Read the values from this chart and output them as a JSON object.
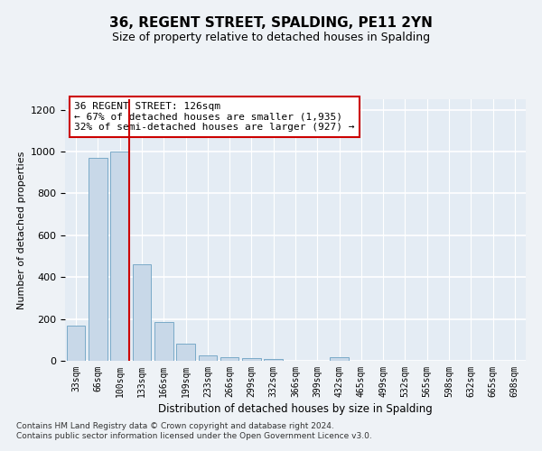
{
  "title": "36, REGENT STREET, SPALDING, PE11 2YN",
  "subtitle": "Size of property relative to detached houses in Spalding",
  "xlabel": "Distribution of detached houses by size in Spalding",
  "ylabel": "Number of detached properties",
  "categories": [
    "33sqm",
    "66sqm",
    "100sqm",
    "133sqm",
    "166sqm",
    "199sqm",
    "233sqm",
    "266sqm",
    "299sqm",
    "332sqm",
    "366sqm",
    "399sqm",
    "432sqm",
    "465sqm",
    "499sqm",
    "532sqm",
    "565sqm",
    "598sqm",
    "632sqm",
    "665sqm",
    "698sqm"
  ],
  "values": [
    170,
    970,
    1000,
    460,
    185,
    80,
    25,
    18,
    12,
    10,
    0,
    0,
    18,
    0,
    0,
    0,
    0,
    0,
    0,
    0,
    0
  ],
  "bar_color": "#c8d8e8",
  "bar_edge_color": "#7aaac8",
  "vline_color": "#cc0000",
  "annotation_text": "36 REGENT STREET: 126sqm\n← 67% of detached houses are smaller (1,935)\n32% of semi-detached houses are larger (927) →",
  "annotation_box_color": "#ffffff",
  "annotation_box_edge": "#cc0000",
  "ylim": [
    0,
    1250
  ],
  "yticks": [
    0,
    200,
    400,
    600,
    800,
    1000,
    1200
  ],
  "footer": "Contains HM Land Registry data © Crown copyright and database right 2024.\nContains public sector information licensed under the Open Government Licence v3.0.",
  "bg_color": "#eef2f6",
  "plot_bg_color": "#e4ecf4",
  "grid_color": "#ffffff",
  "title_fontsize": 11,
  "subtitle_fontsize": 9,
  "ylabel_fontsize": 8,
  "xlabel_fontsize": 8.5,
  "tick_fontsize": 8,
  "xtick_fontsize": 7,
  "ann_fontsize": 8,
  "footer_fontsize": 6.5
}
